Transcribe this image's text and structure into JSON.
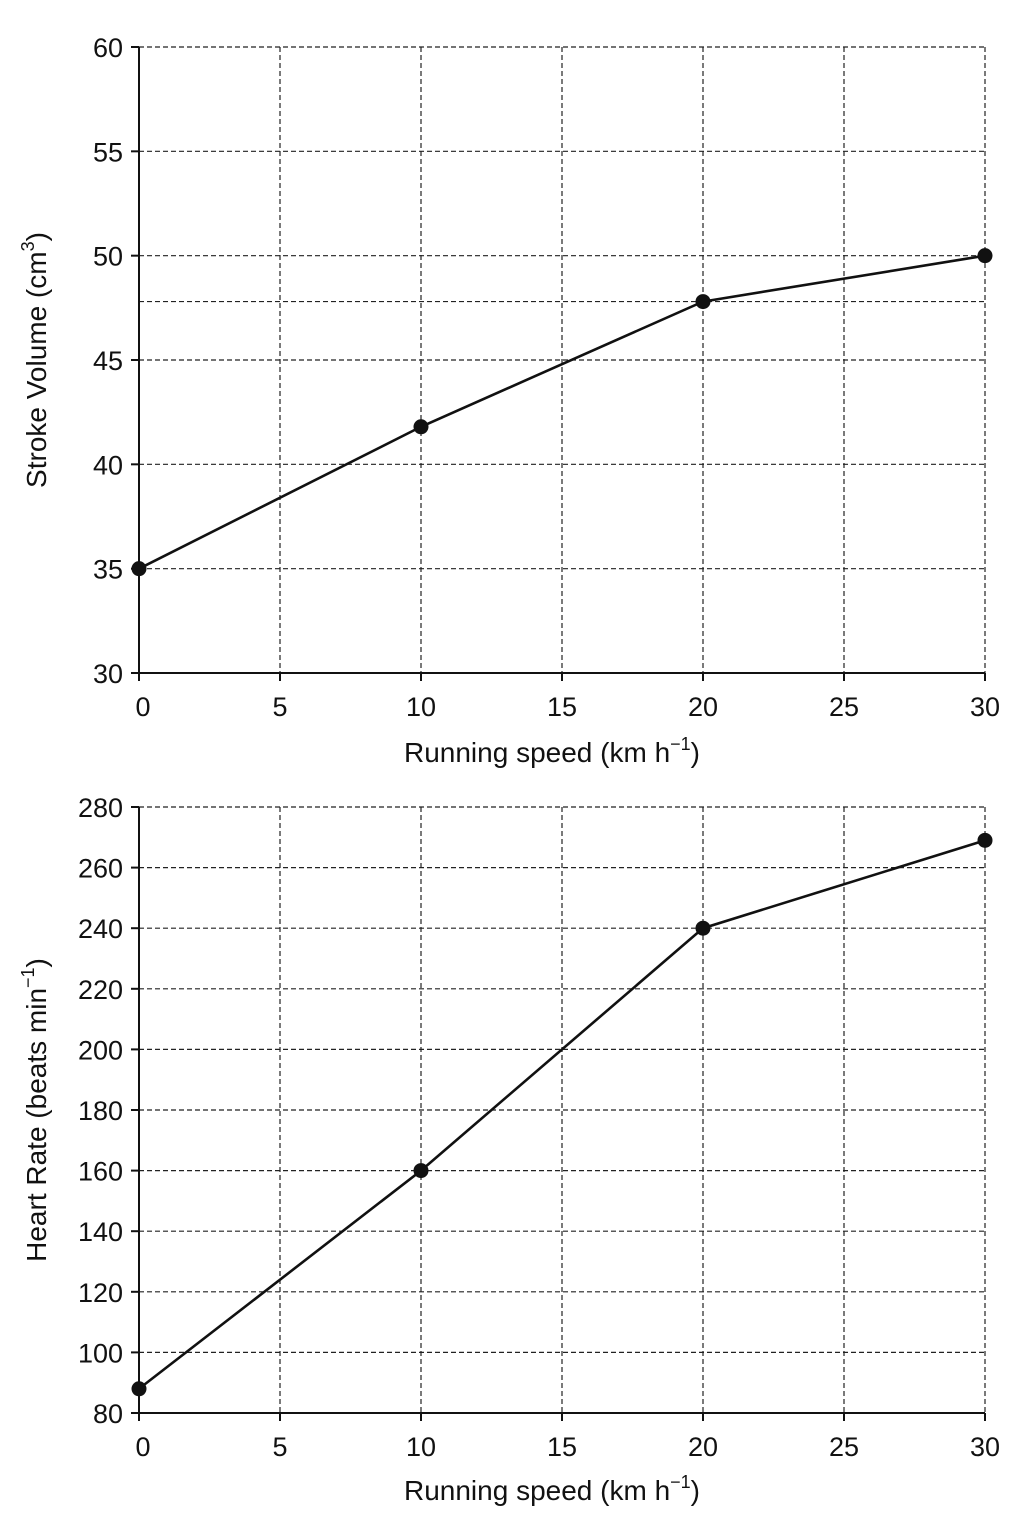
{
  "colors": {
    "ink": "#111111",
    "grid": "#222222",
    "background": "#ffffff"
  },
  "chart_data": [
    {
      "type": "line",
      "title": "",
      "xlabel": "Running speed (km h",
      "xlabel_sup": "−1",
      "xlabel_tail": ")",
      "ylabel": "Stroke Volume (cm",
      "ylabel_sup": "3",
      "ylabel_tail": ")",
      "xlim": [
        0,
        30
      ],
      "ylim": [
        30,
        60
      ],
      "xticks": [
        0,
        5,
        10,
        15,
        20,
        25,
        30
      ],
      "yticks": [
        30,
        35,
        40,
        45,
        50,
        55,
        60
      ],
      "grid": true,
      "grid_style": "dashed",
      "extra_gridlines_y": [
        47.8
      ],
      "series": [
        {
          "x": [
            0,
            10,
            20,
            30
          ],
          "values": [
            35,
            41.8,
            47.8,
            50
          ],
          "marker": "filled-circle"
        }
      ]
    },
    {
      "type": "line",
      "title": "",
      "xlabel": "Running speed (km h",
      "xlabel_sup": "−1",
      "xlabel_tail": ")",
      "ylabel": "Heart Rate (beats min",
      "ylabel_sup": "−1",
      "ylabel_tail": ")",
      "xlim": [
        0,
        30
      ],
      "ylim": [
        80,
        280
      ],
      "xticks": [
        0,
        5,
        10,
        15,
        20,
        25,
        30
      ],
      "yticks": [
        80,
        100,
        120,
        140,
        160,
        180,
        200,
        220,
        240,
        260,
        280
      ],
      "grid": true,
      "grid_style": "dashed",
      "extra_gridlines_y": [],
      "series": [
        {
          "x": [
            0,
            10,
            20,
            30
          ],
          "values": [
            88,
            160,
            240,
            269
          ],
          "marker": "filled-circle"
        }
      ]
    }
  ]
}
